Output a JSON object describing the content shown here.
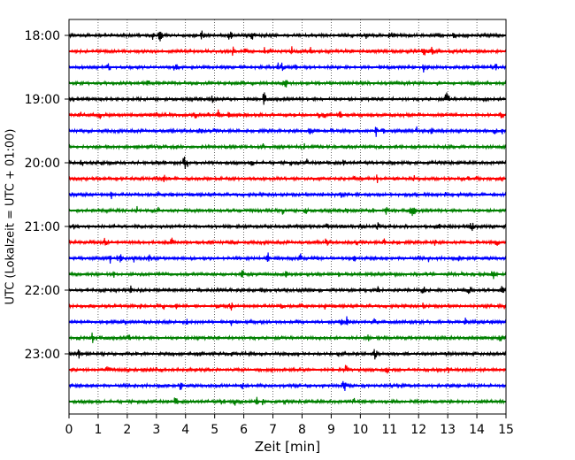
{
  "chart_data": {
    "type": "line",
    "title": "",
    "xlabel": "Zeit  [min]",
    "ylabel": "UTC (Lokalzeit = UTC + 01:00)",
    "xlim": [
      0,
      15
    ],
    "x_ticks": [
      0,
      1,
      2,
      3,
      4,
      5,
      6,
      7,
      8,
      9,
      10,
      11,
      12,
      13,
      14,
      15
    ],
    "x_tick_labels": [
      "0",
      "1",
      "2",
      "3",
      "4",
      "5",
      "6",
      "7",
      "8",
      "9",
      "10",
      "11",
      "12",
      "13",
      "14",
      "15"
    ],
    "y_tick_labels": [
      "18:00",
      "19:00",
      "20:00",
      "21:00",
      "22:00",
      "23:00"
    ],
    "grid": "vertical dotted lines at each minute",
    "trace_interval_min": 15,
    "traces_per_hour": 4,
    "color_cycle": [
      "#000000",
      "#ff0000",
      "#0000ff",
      "#008000"
    ],
    "series": [
      {
        "start": "18:00",
        "color": "#000000"
      },
      {
        "start": "18:15",
        "color": "#ff0000"
      },
      {
        "start": "18:30",
        "color": "#0000ff"
      },
      {
        "start": "18:45",
        "color": "#008000"
      },
      {
        "start": "19:00",
        "color": "#000000"
      },
      {
        "start": "19:15",
        "color": "#ff0000"
      },
      {
        "start": "19:30",
        "color": "#0000ff"
      },
      {
        "start": "19:45",
        "color": "#008000"
      },
      {
        "start": "20:00",
        "color": "#000000"
      },
      {
        "start": "20:15",
        "color": "#ff0000"
      },
      {
        "start": "20:30",
        "color": "#0000ff"
      },
      {
        "start": "20:45",
        "color": "#008000"
      },
      {
        "start": "21:00",
        "color": "#000000"
      },
      {
        "start": "21:15",
        "color": "#ff0000"
      },
      {
        "start": "21:30",
        "color": "#0000ff"
      },
      {
        "start": "21:45",
        "color": "#008000"
      },
      {
        "start": "22:00",
        "color": "#000000"
      },
      {
        "start": "22:15",
        "color": "#ff0000"
      },
      {
        "start": "22:30",
        "color": "#0000ff"
      },
      {
        "start": "22:45",
        "color": "#008000"
      },
      {
        "start": "23:00",
        "color": "#000000"
      },
      {
        "start": "23:15",
        "color": "#ff0000"
      },
      {
        "start": "23:30",
        "color": "#0000ff"
      },
      {
        "start": "23:45",
        "color": "#008000"
      }
    ]
  }
}
